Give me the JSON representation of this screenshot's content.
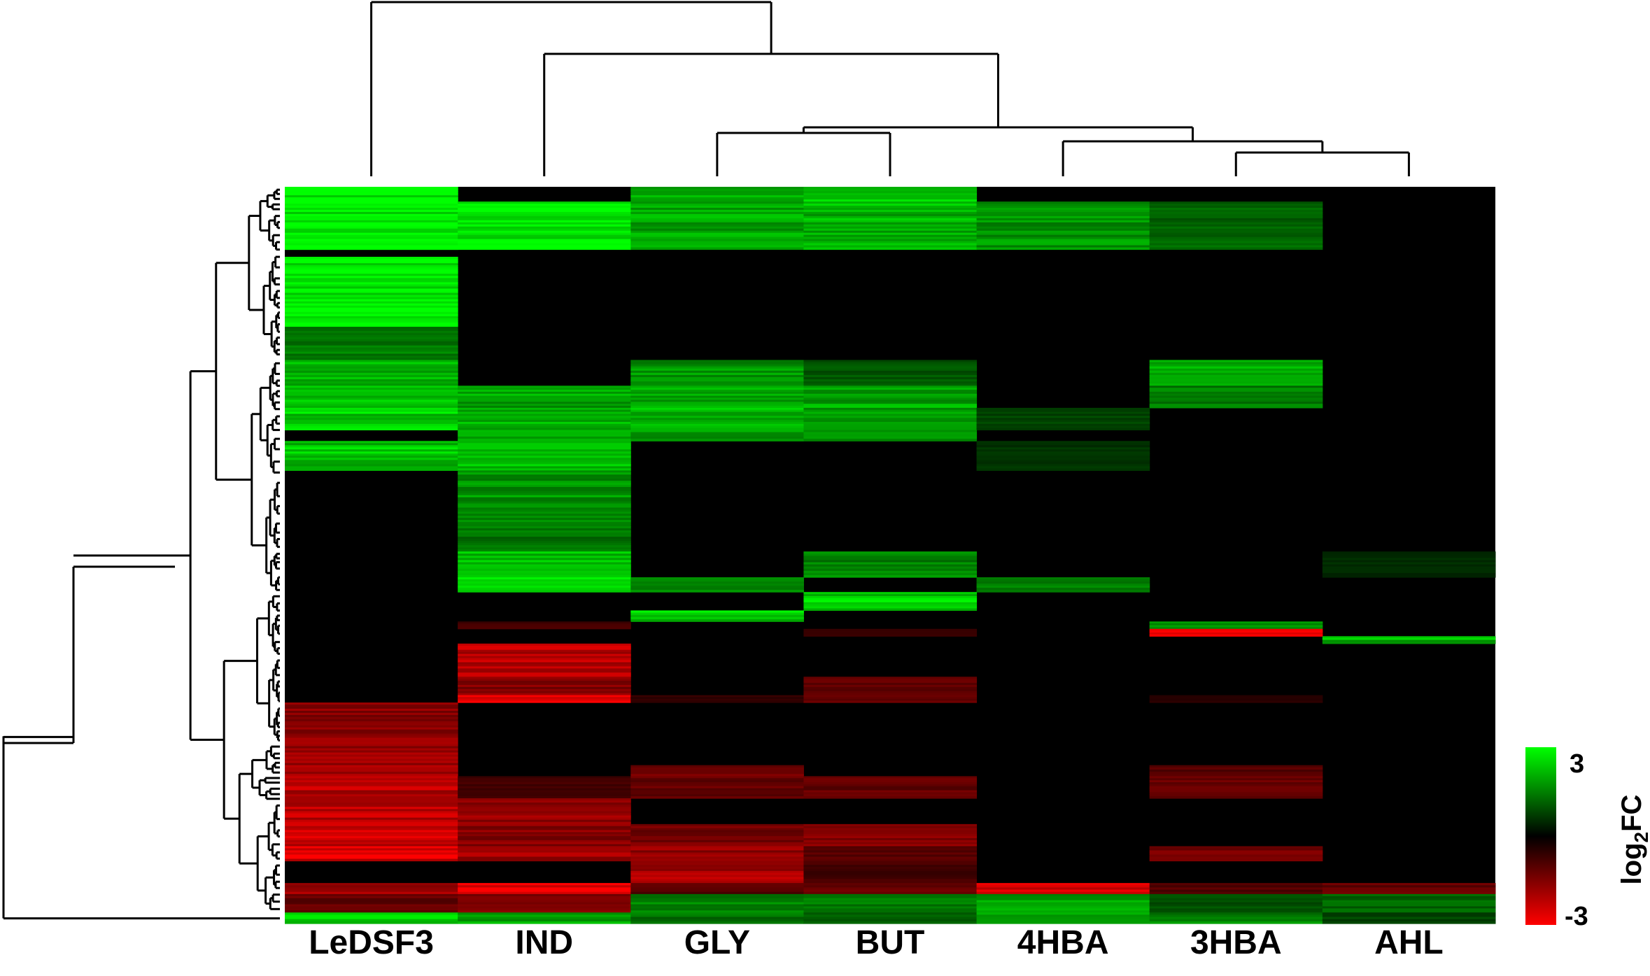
{
  "chart_data": {
    "type": "heatmap",
    "title": "",
    "columns": [
      "LeDSF3",
      "IND",
      "GLY",
      "BUT",
      "4HBA",
      "3HBA",
      "AHL"
    ],
    "column_dendrogram_order": [
      "LeDSF3",
      "IND",
      "GLY",
      "BUT",
      "4HBA",
      "3HBA",
      "AHL"
    ],
    "row_count_estimate": 1000,
    "colorbar": {
      "label": "log2FC",
      "label_main": "log",
      "label_sub": "2",
      "label_suffix": "FC",
      "max_label": "3",
      "min_label": "-3",
      "range": [
        -3,
        3
      ],
      "colors": {
        "high": "#00ff00",
        "mid": "#000000",
        "low": "#ff0000"
      }
    },
    "blocks": [
      {
        "rows": [
          0.0,
          0.085
        ],
        "values": [
          3.0,
          0,
          0,
          0,
          0,
          0,
          0
        ]
      },
      {
        "rows": [
          0.0,
          0.02
        ],
        "values": [
          3.0,
          0,
          2.0,
          2.5,
          0,
          0,
          0
        ]
      },
      {
        "rows": [
          0.02,
          0.085
        ],
        "values": [
          3.0,
          3.0,
          2.0,
          2.2,
          1.8,
          1.2,
          0
        ]
      },
      {
        "rows": [
          0.085,
          0.095
        ],
        "values": [
          0,
          0,
          0,
          0,
          0,
          0,
          0
        ]
      },
      {
        "rows": [
          0.095,
          0.19
        ],
        "values": [
          3.0,
          0,
          0,
          0,
          0,
          0,
          0
        ]
      },
      {
        "rows": [
          0.19,
          0.235
        ],
        "values": [
          1.5,
          0,
          0,
          0,
          0,
          0,
          0
        ]
      },
      {
        "rows": [
          0.235,
          0.27
        ],
        "values": [
          2.2,
          0,
          1.8,
          1.0,
          0,
          2.0,
          0
        ]
      },
      {
        "rows": [
          0.27,
          0.3
        ],
        "values": [
          2.5,
          2.0,
          2.0,
          2.0,
          0,
          1.5,
          0
        ]
      },
      {
        "rows": [
          0.3,
          0.33
        ],
        "values": [
          2.5,
          2.2,
          2.2,
          2.0,
          0.8,
          0,
          0
        ]
      },
      {
        "rows": [
          0.33,
          0.345
        ],
        "values": [
          0,
          2.0,
          2.0,
          2.0,
          0,
          0,
          0
        ]
      },
      {
        "rows": [
          0.345,
          0.385
        ],
        "values": [
          2.4,
          2.2,
          0,
          0,
          0.6,
          0,
          0
        ]
      },
      {
        "rows": [
          0.385,
          0.455
        ],
        "values": [
          0,
          1.8,
          0,
          0,
          0,
          0,
          0
        ]
      },
      {
        "rows": [
          0.455,
          0.495
        ],
        "values": [
          0,
          1.4,
          0,
          0,
          0,
          0,
          0
        ]
      },
      {
        "rows": [
          0.495,
          0.53
        ],
        "values": [
          0,
          2.2,
          0,
          1.6,
          0,
          0,
          0.5
        ]
      },
      {
        "rows": [
          0.53,
          0.55
        ],
        "values": [
          0,
          3.0,
          1.8,
          0,
          1.6,
          0,
          0
        ]
      },
      {
        "rows": [
          0.55,
          0.575
        ],
        "values": [
          0,
          0,
          0,
          2.5,
          0,
          0,
          0
        ]
      },
      {
        "rows": [
          0.575,
          0.59
        ],
        "values": [
          0,
          0,
          2.5,
          0,
          0,
          0,
          0
        ]
      },
      {
        "rows": [
          0.59,
          0.6
        ],
        "values": [
          0,
          -0.8,
          0,
          0,
          0,
          1.8,
          0
        ]
      },
      {
        "rows": [
          0.6,
          0.61
        ],
        "values": [
          0,
          0,
          0,
          -0.6,
          0,
          -2.8,
          0
        ]
      },
      {
        "rows": [
          0.61,
          0.62
        ],
        "values": [
          0,
          0,
          0,
          0,
          0,
          0,
          2.2
        ]
      },
      {
        "rows": [
          0.62,
          0.665
        ],
        "values": [
          0,
          -2.2,
          0,
          0,
          0,
          0,
          0
        ]
      },
      {
        "rows": [
          0.665,
          0.69
        ],
        "values": [
          0,
          -1.6,
          0,
          -1.2,
          0,
          0,
          0
        ]
      },
      {
        "rows": [
          0.69,
          0.7
        ],
        "values": [
          0,
          -3.0,
          -0.6,
          -1.4,
          0,
          -0.5,
          0
        ]
      },
      {
        "rows": [
          0.7,
          0.745
        ],
        "values": [
          -1.6,
          0,
          0,
          0,
          0,
          0,
          0
        ]
      },
      {
        "rows": [
          0.745,
          0.785
        ],
        "values": [
          -1.8,
          0,
          0,
          0,
          0,
          0,
          0
        ]
      },
      {
        "rows": [
          0.785,
          0.8
        ],
        "values": [
          -2.0,
          0,
          -1.4,
          0,
          0,
          -1.0,
          0
        ]
      },
      {
        "rows": [
          0.8,
          0.83
        ],
        "values": [
          -2.2,
          -0.8,
          -1.2,
          -1.2,
          0,
          -1.2,
          0
        ]
      },
      {
        "rows": [
          0.83,
          0.865
        ],
        "values": [
          -2.2,
          -1.8,
          0,
          0,
          0,
          0,
          0
        ]
      },
      {
        "rows": [
          0.865,
          0.895
        ],
        "values": [
          -2.4,
          -1.6,
          -1.4,
          -1.6,
          0,
          0,
          0
        ]
      },
      {
        "rows": [
          0.895,
          0.915
        ],
        "values": [
          -2.6,
          -2.0,
          -1.8,
          -1.0,
          0,
          -1.4,
          0
        ]
      },
      {
        "rows": [
          0.915,
          0.945
        ],
        "values": [
          0,
          0,
          -2.0,
          -0.8,
          0,
          0,
          0
        ]
      },
      {
        "rows": [
          0.945,
          0.96
        ],
        "values": [
          -2.0,
          -3.0,
          -1.0,
          -1.2,
          -2.4,
          -1.0,
          -1.2
        ]
      },
      {
        "rows": [
          0.96,
          0.985
        ],
        "values": [
          -1.2,
          -1.4,
          1.6,
          1.4,
          2.0,
          1.0,
          1.2
        ]
      },
      {
        "rows": [
          0.985,
          1.0
        ],
        "values": [
          2.5,
          2.0,
          1.4,
          1.2,
          2.2,
          1.6,
          0.8
        ]
      }
    ]
  }
}
